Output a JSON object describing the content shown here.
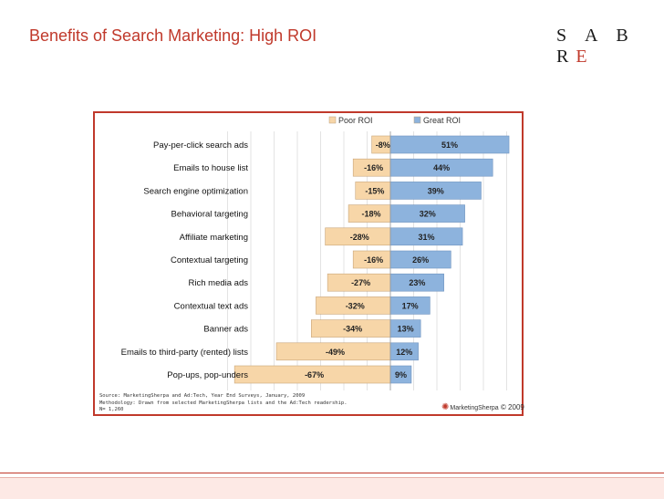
{
  "slide": {
    "title": "Benefits of Search Marketing:  High ROI",
    "logo_text": "SABRE"
  },
  "colors": {
    "title": "#c0392b",
    "poor": "#f7d6a8",
    "great": "#8db3dd",
    "frame": "#c0392b"
  },
  "chart_data": {
    "type": "bar",
    "orientation": "horizontal-diverging",
    "categories": [
      "Pay-per-click search ads",
      "Emails to house list",
      "Search engine optimization",
      "Behavioral targeting",
      "Affiliate marketing",
      "Contextual targeting",
      "Rich media ads",
      "Contextual text ads",
      "Banner ads",
      "Emails to third-party (rented) lists",
      "Pop-ups, pop-unders"
    ],
    "series": [
      {
        "name": "Poor ROI",
        "values": [
          -8,
          -16,
          -15,
          -18,
          -28,
          -16,
          -27,
          -32,
          -34,
          -49,
          -67
        ],
        "labels": [
          "-8%",
          "-16%",
          "-15%",
          "-18%",
          "-28%",
          "-16%",
          "-27%",
          "-32%",
          "-34%",
          "-49%",
          "-67%"
        ],
        "color": "#f7d6a8"
      },
      {
        "name": "Great ROI",
        "values": [
          51,
          44,
          39,
          32,
          31,
          26,
          23,
          17,
          13,
          12,
          9
        ],
        "labels": [
          "51%",
          "44%",
          "39%",
          "32%",
          "31%",
          "26%",
          "23%",
          "17%",
          "13%",
          "12%",
          "9%"
        ],
        "color": "#8db3dd"
      }
    ],
    "legend": "top-right",
    "grid": true,
    "xlim": [
      -70,
      60
    ],
    "source": [
      "Source: MarketingSherpa and Ad:Tech, Year End Surveys, January, 2009",
      "Methodology: Drawn from selected MarketingSherpa lists and the Ad:Tech readership.",
      "N= 1,260"
    ],
    "publisher": "MarketingSherpa",
    "copyright": "© 2009"
  }
}
